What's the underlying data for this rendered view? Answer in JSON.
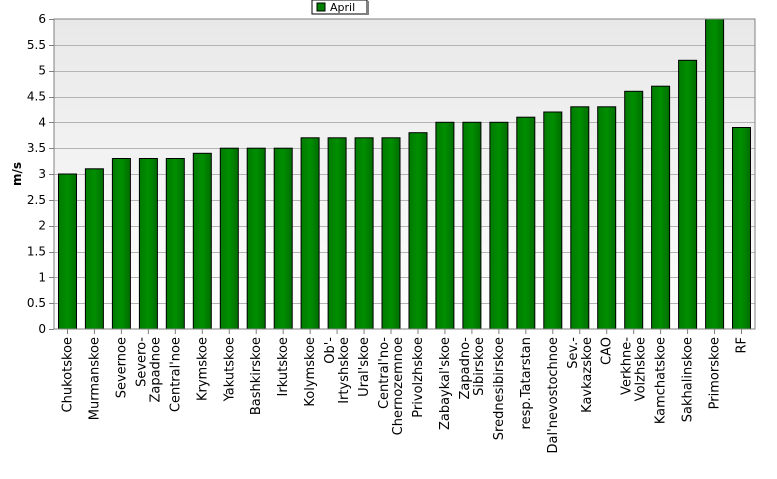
{
  "chart_data": {
    "type": "bar",
    "title": "",
    "xlabel": "",
    "ylabel": "m/s",
    "ylim": [
      0,
      6
    ],
    "yticks": [
      0,
      0.5,
      1,
      1.5,
      2,
      2.5,
      3,
      3.5,
      4,
      4.5,
      5,
      5.5,
      6
    ],
    "grid": true,
    "legend_position": "top-center",
    "categories": [
      "Chukotskoe",
      "Murmanskoe",
      "Severnoe",
      "Severo-\nZapadnoe",
      "Central'noe",
      "Krymskoe",
      "Yakutskoe",
      "Bashkirskoe",
      "Irkutskoe",
      "Kolymskoe",
      "Ob'-\nIrtyshskoe",
      "Ural'skoe",
      "Central'no-\nChernozemnoe",
      "Privolzhskoe",
      "Zabaykal'skoe",
      "Zapadno-\nSibirskoe",
      "Srednesibirskoe",
      "resp.Tatarstan",
      "Dal'nevostochnoe",
      "Sev.-\nKavkazskoe",
      "CAO",
      "Verkhne-\nVolzhskoe",
      "Kamchatskoe",
      "Sakhalinskoe",
      "Primorskoe",
      "RF"
    ],
    "series": [
      {
        "name": "April",
        "color": "#008000",
        "values": [
          3.0,
          3.1,
          3.3,
          3.3,
          3.3,
          3.4,
          3.5,
          3.5,
          3.5,
          3.7,
          3.7,
          3.7,
          3.7,
          3.8,
          4.0,
          4.0,
          4.0,
          4.1,
          4.2,
          4.3,
          4.3,
          4.6,
          4.7,
          5.2,
          6.0,
          3.9
        ]
      }
    ]
  }
}
